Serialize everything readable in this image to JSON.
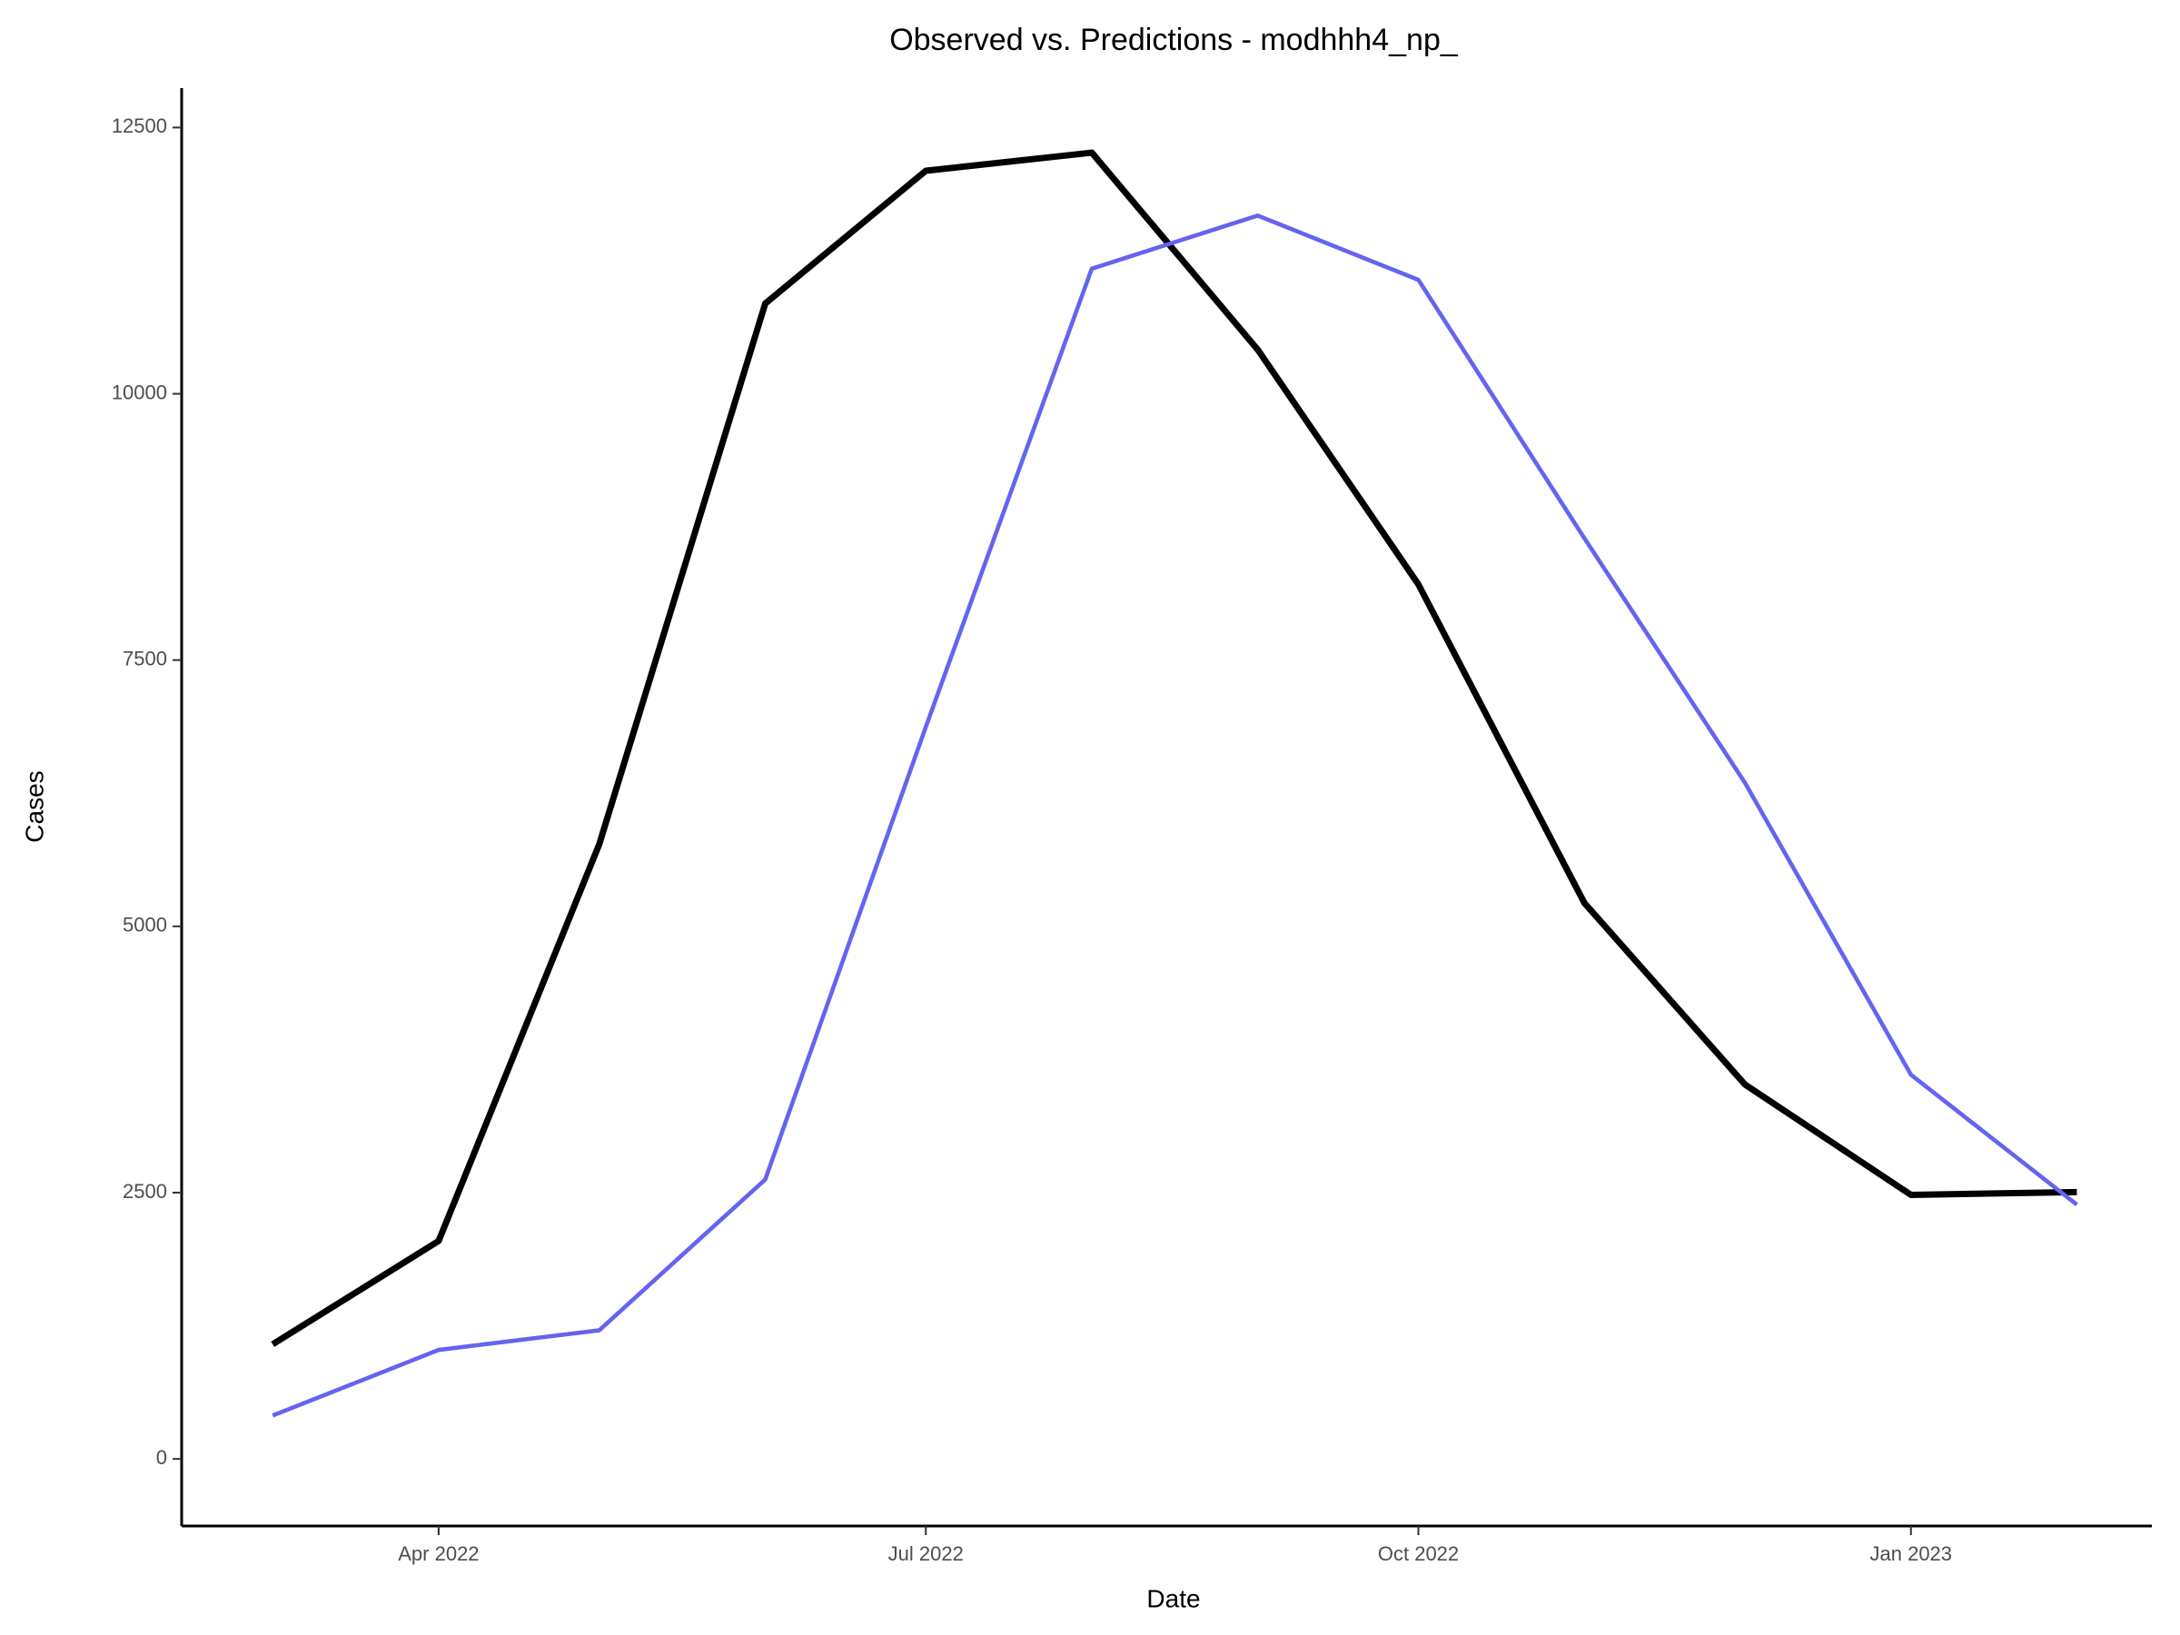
{
  "chart_data": {
    "type": "line",
    "title": "Observed vs. Predictions - modhhh4_np_",
    "xlabel": "Date",
    "ylabel": "Cases",
    "x": [
      "2022-03",
      "2022-04",
      "2022-05",
      "2022-06",
      "2022-07",
      "2022-08",
      "2022-09",
      "2022-10",
      "2022-11",
      "2022-12",
      "2023-01",
      "2023-02"
    ],
    "series": [
      {
        "color": "#000000",
        "values": [
          1076,
          2046,
          5771,
          10847,
          12094,
          12264,
          10414,
          8211,
          5220,
          3515,
          2479,
          2505
        ]
      },
      {
        "color": "#6464f0",
        "values": [
          407,
          1023,
          1207,
          2623,
          6873,
          11175,
          11673,
          11070,
          8644,
          6348,
          3607,
          2387
        ]
      }
    ],
    "xlim": [
      "2022-02-12",
      "2023-02-15"
    ],
    "xticks": [
      {
        "value": "2022-04",
        "label": "Apr 2022"
      },
      {
        "value": "2022-07",
        "label": "Jul 2022"
      },
      {
        "value": "2022-10",
        "label": "Oct 2022"
      },
      {
        "value": "2023-01",
        "label": "Jan 2023"
      }
    ],
    "ylim": [
      -630,
      12870
    ],
    "yticks": [
      0,
      2500,
      5000,
      7500,
      10000,
      12500
    ],
    "grid": false
  }
}
